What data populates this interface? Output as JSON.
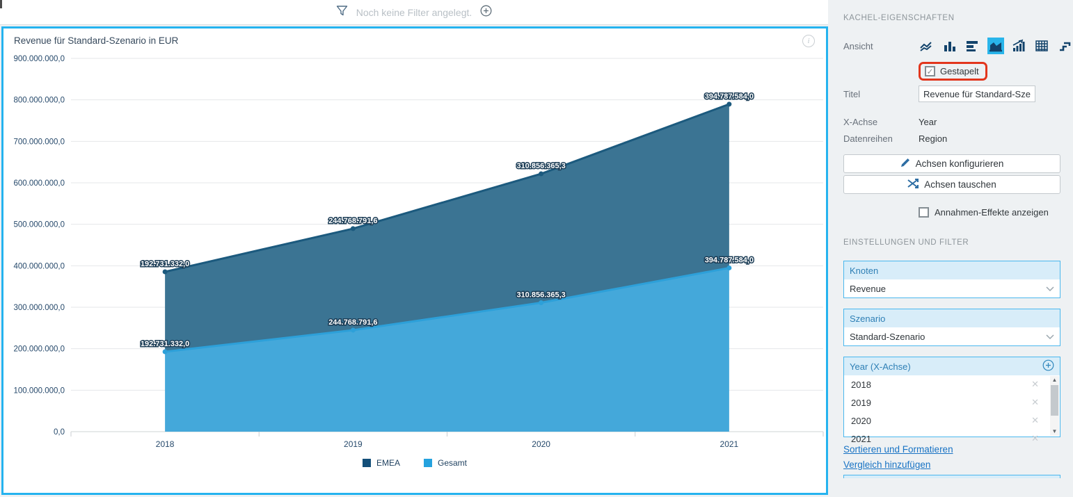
{
  "colors": {
    "accent_cyan": "#25b3ef",
    "highlight_red": "#e2361d",
    "selected_view_bg": "#29b5ea"
  },
  "topbar": {
    "filter_icon": "filter-funnel-icon",
    "filter_hint": "Noch keine Filter angelegt.",
    "add_icon": "circle-plus-icon"
  },
  "chart_data": {
    "type": "area",
    "stacked": true,
    "title": "Revenue für Standard-Szenario in EUR",
    "x": [
      "2018",
      "2019",
      "2020",
      "2021"
    ],
    "series": [
      {
        "name": "Gesamt",
        "values": [
          192731332.0,
          244768791.6,
          310856365.3,
          394787584.0
        ],
        "fill": "#44a8da",
        "stroke": "#2da0d9"
      },
      {
        "name": "EMEA",
        "values": [
          192731332.0,
          244768791.6,
          310856365.3,
          394787584.0
        ],
        "fill": "#3b7493",
        "stroke": "#1c5a7e"
      }
    ],
    "labels": [
      "192.731.332,0",
      "244.768.791,6",
      "310.856.365,3",
      "394.787.584,0"
    ],
    "ylim": [
      0,
      900000000
    ],
    "ytick_step": 100000000,
    "ytick_labels": [
      "0,0",
      "100.000.000,0",
      "200.000.000,0",
      "300.000.000,0",
      "400.000.000,0",
      "500.000.000,0",
      "600.000.000,0",
      "700.000.000,0",
      "800.000.000,0",
      "900.000.000,0"
    ],
    "grid": true,
    "legend_position": "bottom",
    "legend_items": [
      {
        "label": "EMEA",
        "color": "#134f79"
      },
      {
        "label": "Gesamt",
        "color": "#25a2de"
      }
    ]
  },
  "panel": {
    "title": "KACHEL-EIGENSCHAFTEN",
    "ansicht_label": "Ansicht",
    "view_icons": [
      "line-chart",
      "column-chart",
      "bar-chart",
      "area-chart",
      "bar-growth-chart",
      "table",
      "step-chart"
    ],
    "selected_view": "area-chart",
    "gestapelt_label": "Gestapelt",
    "gestapelt_checked": "✓",
    "titel_label": "Titel",
    "titel_value": "Revenue für Standard-Szen",
    "xachse_label": "X-Achse",
    "xachse_value": "Year",
    "datenreihen_label": "Datenreihen",
    "datenreihen_value": "Region",
    "btn_achsen_konfigurieren": "Achsen konfigurieren",
    "btn_achsen_tauschen": "Achsen tauschen",
    "annahmen_label": "Annahmen-Effekte anzeigen",
    "settings_title": "EINSTELLUNGEN UND FILTER",
    "knoten": {
      "label": "Knoten",
      "value": "Revenue"
    },
    "szenario": {
      "label": "Szenario",
      "value": "Standard-Szenario"
    },
    "year_filter": {
      "label": "Year (X-Achse)",
      "items": [
        "2018",
        "2019",
        "2020",
        "2021"
      ]
    },
    "links": [
      "Sortieren und Formatieren",
      "Vergleich hinzufügen"
    ]
  }
}
